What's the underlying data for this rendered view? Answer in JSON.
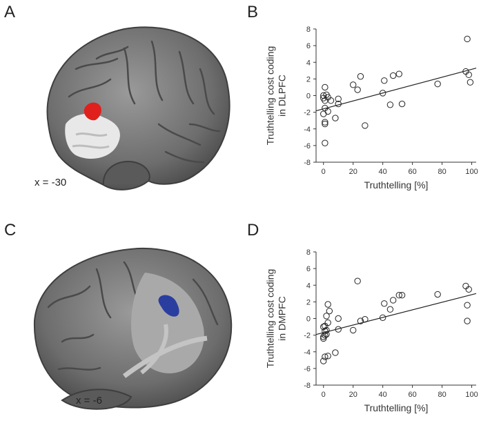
{
  "panels": {
    "a": {
      "letter": "A",
      "slice_label": "x = -30",
      "cluster_color": "#e0201c"
    },
    "b": {
      "letter": "B"
    },
    "c": {
      "letter": "C",
      "slice_label": "x = -6",
      "cluster_color": "#2a3ea0"
    },
    "d": {
      "letter": "D"
    }
  },
  "chart_data": [
    {
      "type": "scatter",
      "title": "",
      "xlabel": "Truthtelling [%]",
      "ylabel": "Truthtelling cost coding in DLPFC",
      "xlim": [
        -5,
        103
      ],
      "ylim": [
        -8,
        8
      ],
      "xticks": [
        0,
        20,
        40,
        60,
        80,
        100
      ],
      "yticks": [
        -8,
        -6,
        -4,
        -2,
        0,
        2,
        4,
        6,
        8
      ],
      "grid": false,
      "marker": "open-circle",
      "points": [
        {
          "x": 0,
          "y": 0.0
        },
        {
          "x": 0,
          "y": -0.3
        },
        {
          "x": 0,
          "y": -2.2
        },
        {
          "x": 1,
          "y": 1.0
        },
        {
          "x": 1,
          "y": -0.6
        },
        {
          "x": 1,
          "y": -1.5
        },
        {
          "x": 1,
          "y": -3.2
        },
        {
          "x": 1,
          "y": -3.4
        },
        {
          "x": 1,
          "y": -5.7
        },
        {
          "x": 2,
          "y": 0.1
        },
        {
          "x": 3,
          "y": -0.2
        },
        {
          "x": 3,
          "y": -1.9
        },
        {
          "x": 5,
          "y": -0.6
        },
        {
          "x": 8,
          "y": -2.7
        },
        {
          "x": 10,
          "y": -0.4
        },
        {
          "x": 10,
          "y": -1.0
        },
        {
          "x": 20,
          "y": 1.3
        },
        {
          "x": 23,
          "y": 0.7
        },
        {
          "x": 25,
          "y": 2.3
        },
        {
          "x": 28,
          "y": -3.6
        },
        {
          "x": 40,
          "y": 0.3
        },
        {
          "x": 41,
          "y": 1.8
        },
        {
          "x": 45,
          "y": -1.1
        },
        {
          "x": 47,
          "y": 2.4
        },
        {
          "x": 51,
          "y": 2.6
        },
        {
          "x": 53,
          "y": -1.0
        },
        {
          "x": 77,
          "y": 1.4
        },
        {
          "x": 96,
          "y": 2.9
        },
        {
          "x": 97,
          "y": 6.8
        },
        {
          "x": 98,
          "y": 2.5
        },
        {
          "x": 99,
          "y": 1.6
        }
      ],
      "fit_line": {
        "x": [
          -5,
          103
        ],
        "y": [
          -1.83,
          3.3
        ]
      }
    },
    {
      "type": "scatter",
      "title": "",
      "xlabel": "Truthtelling [%]",
      "ylabel": "Truthtelling cost coding in DMPFC",
      "xlim": [
        -5,
        103
      ],
      "ylim": [
        -8,
        8
      ],
      "xticks": [
        0,
        20,
        40,
        60,
        80,
        100
      ],
      "yticks": [
        -8,
        -6,
        -4,
        -2,
        0,
        2,
        4,
        6,
        8
      ],
      "grid": false,
      "marker": "open-circle",
      "points": [
        {
          "x": 0,
          "y": -5.1
        },
        {
          "x": 0,
          "y": -2.2
        },
        {
          "x": 0,
          "y": -2.4
        },
        {
          "x": 0,
          "y": -1.0
        },
        {
          "x": 1,
          "y": -0.9
        },
        {
          "x": 1,
          "y": -1.5
        },
        {
          "x": 1,
          "y": -2.0
        },
        {
          "x": 1,
          "y": -4.6
        },
        {
          "x": 2,
          "y": 0.3
        },
        {
          "x": 2,
          "y": -1.9
        },
        {
          "x": 2,
          "y": -1.4
        },
        {
          "x": 3,
          "y": 1.7
        },
        {
          "x": 3,
          "y": -0.5
        },
        {
          "x": 3,
          "y": -4.5
        },
        {
          "x": 4,
          "y": 0.9
        },
        {
          "x": 8,
          "y": -4.1
        },
        {
          "x": 10,
          "y": 0.0
        },
        {
          "x": 10,
          "y": -1.3
        },
        {
          "x": 20,
          "y": -1.4
        },
        {
          "x": 23,
          "y": 4.5
        },
        {
          "x": 25,
          "y": -0.3
        },
        {
          "x": 28,
          "y": -0.1
        },
        {
          "x": 40,
          "y": 0.1
        },
        {
          "x": 41,
          "y": 1.8
        },
        {
          "x": 45,
          "y": 1.1
        },
        {
          "x": 47,
          "y": 2.2
        },
        {
          "x": 51,
          "y": 2.8
        },
        {
          "x": 53,
          "y": 2.8
        },
        {
          "x": 77,
          "y": 2.9
        },
        {
          "x": 96,
          "y": 3.9
        },
        {
          "x": 97,
          "y": 1.6
        },
        {
          "x": 97,
          "y": -0.3
        },
        {
          "x": 98,
          "y": 3.5
        }
      ],
      "fit_line": {
        "x": [
          -5,
          103
        ],
        "y": [
          -1.92,
          3.0
        ]
      }
    }
  ]
}
